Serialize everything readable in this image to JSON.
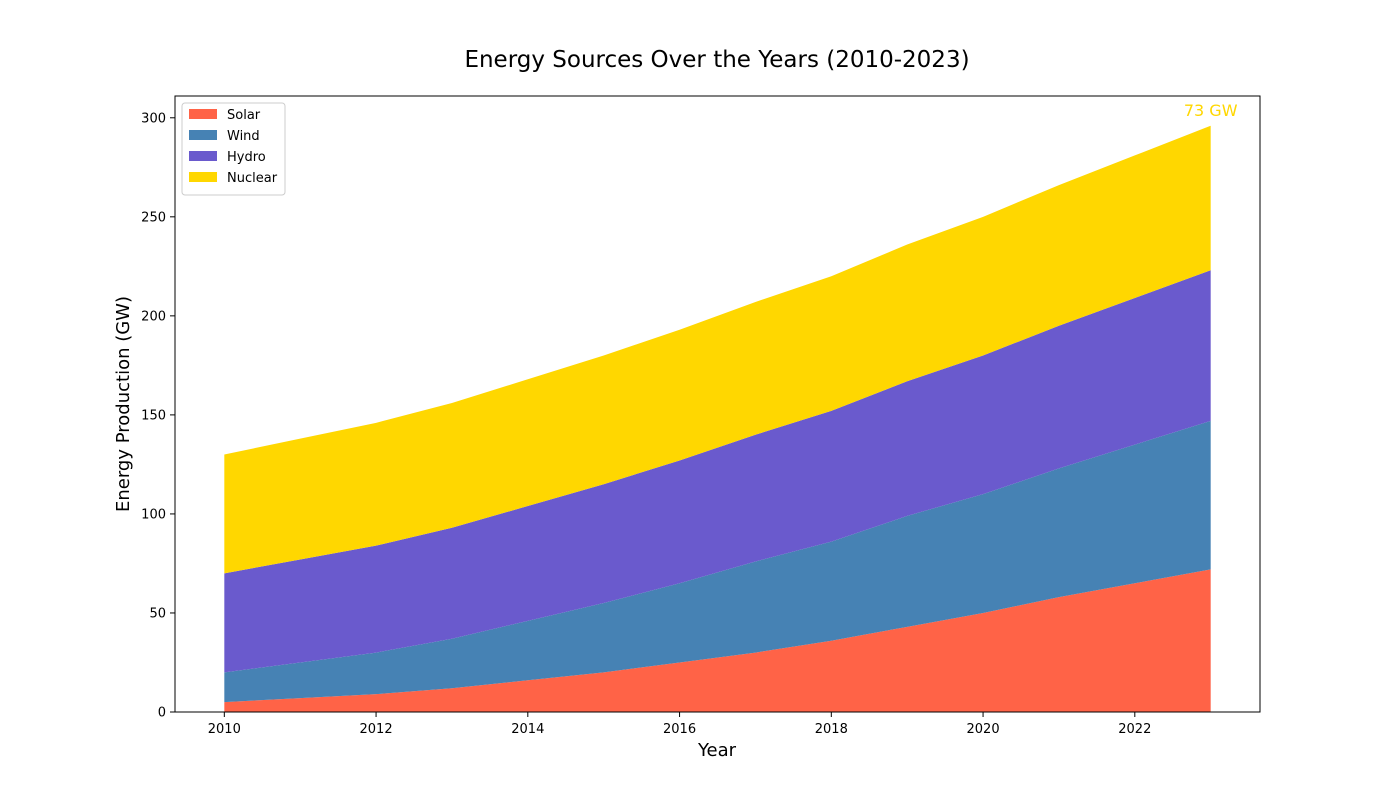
{
  "chart_data": {
    "type": "area",
    "stacked": true,
    "title": "Energy Sources Over the Years (2010-2023)",
    "xlabel": "Year",
    "ylabel": "Energy Production (GW)",
    "x": [
      2010,
      2011,
      2012,
      2013,
      2014,
      2015,
      2016,
      2017,
      2018,
      2019,
      2020,
      2021,
      2022,
      2023
    ],
    "xlim": [
      2009.35,
      2023.65
    ],
    "ylim": [
      0,
      311
    ],
    "xticks": [
      2010,
      2012,
      2014,
      2016,
      2018,
      2020,
      2022
    ],
    "yticks": [
      0,
      50,
      100,
      150,
      200,
      250,
      300
    ],
    "grid": false,
    "legend_position": "top-left",
    "series": [
      {
        "name": "Solar",
        "color": "#FF6347",
        "values": [
          5,
          7,
          9,
          12,
          16,
          20,
          25,
          30,
          36,
          43,
          50,
          58,
          65,
          72
        ]
      },
      {
        "name": "Wind",
        "color": "#4682B4",
        "values": [
          15,
          18,
          21,
          25,
          30,
          35,
          40,
          46,
          50,
          56,
          60,
          65,
          70,
          75
        ]
      },
      {
        "name": "Hydro",
        "color": "#6A5ACD",
        "values": [
          50,
          52,
          54,
          56,
          58,
          60,
          62,
          64,
          66,
          68,
          70,
          72,
          74,
          76
        ]
      },
      {
        "name": "Nuclear",
        "color": "#FFD700",
        "values": [
          60,
          61,
          62,
          63,
          64,
          65,
          66,
          67,
          68,
          69,
          70,
          71,
          72,
          73
        ]
      }
    ],
    "annotations": [
      {
        "text": "73 GW",
        "x": 2023,
        "y": 304,
        "color": "#FFD700"
      }
    ]
  }
}
